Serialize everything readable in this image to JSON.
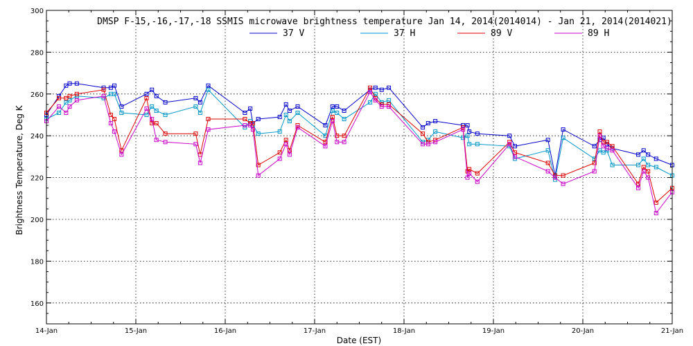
{
  "chart_data": {
    "type": "line",
    "title": "DMSP F-15,-16,-17,-18 SSMIS microwave brightness temperature Jan 14, 2014(2014014) - Jan 21, 2014(2014021)",
    "xlabel": "Date (EST)",
    "ylabel": "Brightness Temperature, Deg K",
    "xlim": [
      0,
      7
    ],
    "ylim": [
      150,
      300
    ],
    "x_ticks": [
      {
        "value": 0,
        "label": "14-Jan"
      },
      {
        "value": 1,
        "label": "15-Jan"
      },
      {
        "value": 2,
        "label": "16-Jan"
      },
      {
        "value": 3,
        "label": "17-Jan"
      },
      {
        "value": 4,
        "label": "18-Jan"
      },
      {
        "value": 5,
        "label": "19-Jan"
      },
      {
        "value": 6,
        "label": "20-Jan"
      },
      {
        "value": 7,
        "label": "21-Jan"
      }
    ],
    "y_ticks": [
      160,
      180,
      200,
      220,
      240,
      260,
      280,
      300
    ],
    "grid": true,
    "legend_position": "top-center",
    "series": [
      {
        "name": "37 V",
        "color": "#0000c8",
        "points": [
          [
            0.0,
            250
          ],
          [
            0.14,
            259
          ],
          [
            0.22,
            264
          ],
          [
            0.26,
            265
          ],
          [
            0.34,
            265
          ],
          [
            0.64,
            263
          ],
          [
            0.72,
            263
          ],
          [
            0.76,
            264
          ],
          [
            0.84,
            254
          ],
          [
            1.12,
            260
          ],
          [
            1.18,
            262
          ],
          [
            1.23,
            259
          ],
          [
            1.33,
            256
          ],
          [
            1.67,
            258
          ],
          [
            1.72,
            256
          ],
          [
            1.81,
            264
          ],
          [
            2.22,
            251
          ],
          [
            2.28,
            253
          ],
          [
            2.31,
            246
          ],
          [
            2.37,
            248
          ],
          [
            2.61,
            249
          ],
          [
            2.68,
            255
          ],
          [
            2.72,
            252
          ],
          [
            2.81,
            254
          ],
          [
            3.12,
            245
          ],
          [
            3.2,
            254
          ],
          [
            3.25,
            254
          ],
          [
            3.33,
            252
          ],
          [
            3.62,
            262
          ],
          [
            3.68,
            263
          ],
          [
            3.75,
            262
          ],
          [
            3.83,
            263
          ],
          [
            4.21,
            244
          ],
          [
            4.27,
            246
          ],
          [
            4.35,
            247
          ],
          [
            4.66,
            245
          ],
          [
            4.71,
            245
          ],
          [
            4.73,
            242
          ],
          [
            4.82,
            241
          ],
          [
            5.18,
            240
          ],
          [
            5.24,
            235
          ],
          [
            5.61,
            238
          ],
          [
            5.69,
            221
          ],
          [
            5.78,
            243
          ],
          [
            6.13,
            235
          ],
          [
            6.19,
            238
          ],
          [
            6.23,
            239
          ],
          [
            6.27,
            236
          ],
          [
            6.33,
            234
          ],
          [
            6.62,
            231
          ],
          [
            6.68,
            233
          ],
          [
            6.73,
            231
          ],
          [
            6.82,
            229
          ],
          [
            7.0,
            226
          ]
        ]
      },
      {
        "name": "37 H",
        "color": "#0096c8",
        "points": [
          [
            0.0,
            248
          ],
          [
            0.14,
            251
          ],
          [
            0.22,
            256
          ],
          [
            0.26,
            257
          ],
          [
            0.34,
            259
          ],
          [
            0.64,
            258
          ],
          [
            0.72,
            260
          ],
          [
            0.76,
            260
          ],
          [
            0.84,
            251
          ],
          [
            1.12,
            250
          ],
          [
            1.18,
            254
          ],
          [
            1.23,
            252
          ],
          [
            1.33,
            250
          ],
          [
            1.67,
            254
          ],
          [
            1.72,
            251
          ],
          [
            1.81,
            262
          ],
          [
            2.22,
            244
          ],
          [
            2.28,
            247
          ],
          [
            2.31,
            245
          ],
          [
            2.37,
            241
          ],
          [
            2.61,
            242
          ],
          [
            2.68,
            250
          ],
          [
            2.72,
            247
          ],
          [
            2.81,
            251
          ],
          [
            3.12,
            240
          ],
          [
            3.2,
            252
          ],
          [
            3.25,
            251
          ],
          [
            3.33,
            248
          ],
          [
            3.62,
            256
          ],
          [
            3.68,
            260
          ],
          [
            3.75,
            256
          ],
          [
            3.83,
            257
          ],
          [
            4.21,
            237
          ],
          [
            4.27,
            238
          ],
          [
            4.35,
            242
          ],
          [
            4.66,
            239
          ],
          [
            4.71,
            240
          ],
          [
            4.73,
            236
          ],
          [
            4.82,
            236
          ],
          [
            5.18,
            235
          ],
          [
            5.24,
            229
          ],
          [
            5.61,
            233
          ],
          [
            5.69,
            219
          ],
          [
            5.78,
            239
          ],
          [
            6.13,
            229
          ],
          [
            6.19,
            233
          ],
          [
            6.23,
            232
          ],
          [
            6.27,
            233
          ],
          [
            6.33,
            226
          ],
          [
            6.62,
            226
          ],
          [
            6.68,
            229
          ],
          [
            6.73,
            226
          ],
          [
            6.82,
            225
          ],
          [
            7.0,
            221
          ]
        ]
      },
      {
        "name": "89 V",
        "color": "#dc0000",
        "points": [
          [
            0.0,
            251
          ],
          [
            0.14,
            258
          ],
          [
            0.22,
            258
          ],
          [
            0.26,
            259
          ],
          [
            0.34,
            260
          ],
          [
            0.64,
            262
          ],
          [
            0.72,
            250
          ],
          [
            0.76,
            248
          ],
          [
            0.84,
            233
          ],
          [
            1.12,
            258
          ],
          [
            1.18,
            246
          ],
          [
            1.23,
            246
          ],
          [
            1.33,
            241
          ],
          [
            1.67,
            241
          ],
          [
            1.72,
            231
          ],
          [
            1.81,
            248
          ],
          [
            2.22,
            248
          ],
          [
            2.28,
            246
          ],
          [
            2.31,
            246
          ],
          [
            2.37,
            226
          ],
          [
            2.61,
            232
          ],
          [
            2.68,
            238
          ],
          [
            2.72,
            233
          ],
          [
            2.81,
            245
          ],
          [
            3.12,
            237
          ],
          [
            3.2,
            249
          ],
          [
            3.25,
            240
          ],
          [
            3.33,
            240
          ],
          [
            3.62,
            263
          ],
          [
            3.68,
            258
          ],
          [
            3.75,
            255
          ],
          [
            3.83,
            255
          ],
          [
            4.21,
            241
          ],
          [
            4.27,
            237
          ],
          [
            4.35,
            238
          ],
          [
            4.66,
            244
          ],
          [
            4.71,
            223
          ],
          [
            4.73,
            224
          ],
          [
            4.82,
            222
          ],
          [
            5.18,
            237
          ],
          [
            5.24,
            232
          ],
          [
            5.61,
            227
          ],
          [
            5.69,
            221
          ],
          [
            5.78,
            221
          ],
          [
            6.13,
            227
          ],
          [
            6.19,
            242
          ],
          [
            6.23,
            237
          ],
          [
            6.27,
            237
          ],
          [
            6.33,
            235
          ],
          [
            6.62,
            217
          ],
          [
            6.68,
            225
          ],
          [
            6.73,
            223
          ],
          [
            6.82,
            208
          ],
          [
            7.0,
            215
          ]
        ]
      },
      {
        "name": "89 H",
        "color": "#c800c8",
        "points": [
          [
            0.0,
            247
          ],
          [
            0.14,
            254
          ],
          [
            0.22,
            251
          ],
          [
            0.26,
            254
          ],
          [
            0.34,
            257
          ],
          [
            0.64,
            259
          ],
          [
            0.72,
            246
          ],
          [
            0.76,
            242
          ],
          [
            0.84,
            231
          ],
          [
            1.12,
            253
          ],
          [
            1.18,
            248
          ],
          [
            1.23,
            238
          ],
          [
            1.33,
            237
          ],
          [
            1.67,
            236
          ],
          [
            1.72,
            227
          ],
          [
            1.81,
            243
          ],
          [
            2.22,
            245
          ],
          [
            2.28,
            245
          ],
          [
            2.31,
            243
          ],
          [
            2.37,
            221
          ],
          [
            2.61,
            229
          ],
          [
            2.68,
            236
          ],
          [
            2.72,
            231
          ],
          [
            2.81,
            244
          ],
          [
            3.12,
            235
          ],
          [
            3.2,
            247
          ],
          [
            3.25,
            237
          ],
          [
            3.33,
            237
          ],
          [
            3.62,
            261
          ],
          [
            3.68,
            257
          ],
          [
            3.75,
            254
          ],
          [
            3.83,
            254
          ],
          [
            4.21,
            236
          ],
          [
            4.27,
            236
          ],
          [
            4.35,
            237
          ],
          [
            4.66,
            243
          ],
          [
            4.71,
            220
          ],
          [
            4.73,
            222
          ],
          [
            4.82,
            218
          ],
          [
            5.18,
            236
          ],
          [
            5.24,
            230
          ],
          [
            5.61,
            223
          ],
          [
            5.69,
            220
          ],
          [
            5.78,
            217
          ],
          [
            6.13,
            223
          ],
          [
            6.19,
            240
          ],
          [
            6.23,
            235
          ],
          [
            6.27,
            234
          ],
          [
            6.33,
            233
          ],
          [
            6.62,
            215
          ],
          [
            6.68,
            223
          ],
          [
            6.73,
            220
          ],
          [
            6.82,
            203
          ],
          [
            7.0,
            213
          ]
        ]
      }
    ]
  }
}
